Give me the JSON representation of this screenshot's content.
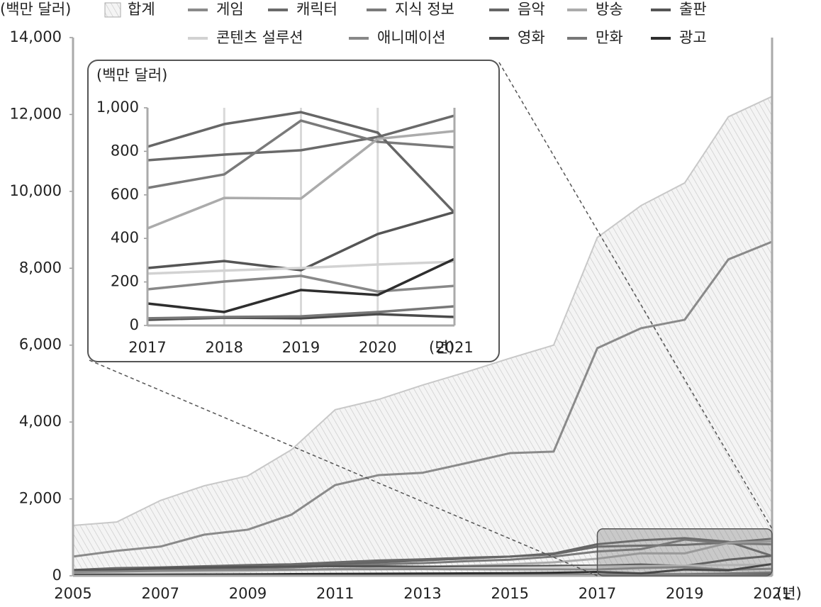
{
  "chart_data": [
    {
      "type": "line",
      "y_label": "(백만 달러)",
      "x_unit": "(년)",
      "x": [
        2005,
        2006,
        2007,
        2008,
        2009,
        2010,
        2011,
        2012,
        2013,
        2014,
        2015,
        2016,
        2017,
        2018,
        2019,
        2020,
        2021
      ],
      "xlim": [
        2005,
        2021
      ],
      "xticks": [
        2005,
        2007,
        2009,
        2011,
        2013,
        2015,
        2017,
        2019,
        2021
      ],
      "ylim": [
        0,
        14000
      ],
      "yticks": [
        0,
        {
          "value": 2000,
          "label": "2,000"
        },
        {
          "value": 4000,
          "label": "4,000"
        },
        {
          "value": 6000,
          "label": "6,000"
        },
        {
          "value": 8000,
          "label": "8,000"
        },
        {
          "value": 10000,
          "label": "10,000"
        },
        {
          "value": 12000,
          "label": "12,000"
        },
        {
          "value": 14000,
          "label": "14,000"
        }
      ],
      "series": [
        {
          "name": "합계",
          "type": "area",
          "color": "#c8c8c8",
          "values": [
            1310,
            1400,
            1960,
            2340,
            2600,
            3280,
            4320,
            4590,
            4960,
            5300,
            5660,
            6000,
            8800,
            9630,
            10220,
            11940,
            12470
          ]
        },
        {
          "name": "게임",
          "color": "#8a8a8a",
          "values": [
            500,
            650,
            760,
            1070,
            1200,
            1590,
            2360,
            2620,
            2680,
            2930,
            3190,
            3230,
            5920,
            6440,
            6660,
            8230,
            8690
          ]
        },
        {
          "name": "캐릭터",
          "color": "#6a6a6a",
          "values": [
            150,
            200,
            220,
            250,
            280,
            300,
            350,
            400,
            430,
            470,
            500,
            560,
            759,
            785,
            805,
            866,
            964
          ]
        },
        {
          "name": "지식 정보",
          "color": "#7a7a7a",
          "values": [
            100,
            120,
            150,
            180,
            200,
            220,
            260,
            300,
            330,
            380,
            420,
            500,
            632,
            694,
            941,
            844,
            818
          ]
        },
        {
          "name": "음악",
          "color": "#666666",
          "values": [
            120,
            130,
            160,
            200,
            220,
            250,
            300,
            350,
            400,
            450,
            500,
            580,
            821,
            925,
            980,
            886,
            518
          ]
        },
        {
          "name": "방송",
          "color": "#ababab",
          "values": [
            50,
            60,
            80,
            100,
            120,
            150,
            180,
            200,
            230,
            260,
            300,
            350,
            446,
            586,
            583,
            857,
            893
          ]
        },
        {
          "name": "출판",
          "color": "#555555",
          "values": [
            150,
            150,
            200,
            220,
            230,
            240,
            250,
            250,
            240,
            240,
            250,
            260,
            264,
            296,
            254,
            420,
            521
          ]
        },
        {
          "name": "콘텐츠 설루션",
          "color": "#d2d2d2",
          "values": [
            50,
            60,
            80,
            100,
            120,
            140,
            160,
            180,
            190,
            200,
            210,
            220,
            238,
            252,
            264,
            280,
            293
          ]
        },
        {
          "name": "애니메이션",
          "color": "#888888",
          "values": [
            100,
            110,
            130,
            140,
            150,
            160,
            170,
            170,
            175,
            170,
            165,
            165,
            166,
            202,
            228,
            156,
            182
          ]
        },
        {
          "name": "영화",
          "color": "#4a4a4a",
          "values": [
            30,
            30,
            28,
            25,
            25,
            22,
            22,
            20,
            20,
            20,
            22,
            24,
            26,
            36,
            33,
            52,
            39
          ]
        },
        {
          "name": "만화",
          "color": "#777777",
          "values": [
            10,
            12,
            15,
            15,
            18,
            20,
            22,
            24,
            26,
            28,
            30,
            32,
            33,
            39,
            42,
            62,
            88
          ]
        },
        {
          "name": "광고",
          "color": "#2e2e2e",
          "values": [
            20,
            25,
            30,
            35,
            40,
            45,
            50,
            55,
            60,
            65,
            70,
            80,
            101,
            62,
            163,
            140,
            306
          ]
        }
      ]
    },
    {
      "type": "line",
      "y_label": "(백만 달러)",
      "x_unit": "(년)",
      "grid": "x",
      "x": [
        2017,
        2018,
        2019,
        2020,
        2021
      ],
      "xlim": [
        2017,
        2021
      ],
      "xticks": [
        2017,
        2018,
        2019,
        2020,
        2021
      ],
      "ylim": [
        0,
        1000
      ],
      "yticks": [
        0,
        200,
        400,
        600,
        800,
        {
          "value": 1000,
          "label": "1,000"
        }
      ],
      "series": [
        {
          "color": "#6a6a6a",
          "values": [
            759,
            785,
            805,
            866,
            964
          ]
        },
        {
          "color": "#7a7a7a",
          "values": [
            632,
            694,
            941,
            844,
            818
          ]
        },
        {
          "color": "#666666",
          "values": [
            821,
            925,
            980,
            886,
            518
          ]
        },
        {
          "color": "#ababab",
          "values": [
            446,
            586,
            583,
            857,
            893
          ]
        },
        {
          "color": "#555555",
          "values": [
            264,
            296,
            254,
            420,
            521
          ]
        },
        {
          "color": "#d2d2d2",
          "values": [
            238,
            252,
            264,
            280,
            293
          ]
        },
        {
          "color": "#888888",
          "values": [
            166,
            202,
            228,
            156,
            182
          ]
        },
        {
          "color": "#4a4a4a",
          "values": [
            26,
            36,
            33,
            52,
            39
          ]
        },
        {
          "color": "#777777",
          "values": [
            33,
            39,
            42,
            62,
            88
          ]
        },
        {
          "color": "#2e2e2e",
          "values": [
            101,
            62,
            163,
            140,
            306
          ]
        }
      ]
    }
  ]
}
